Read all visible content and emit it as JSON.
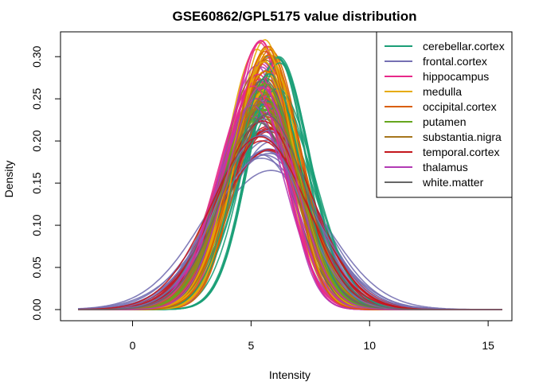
{
  "chart_data": {
    "type": "line",
    "title": "GSE60862/GPL5175 value distribution",
    "xlabel": "Intensity",
    "ylabel": "Density",
    "xlim": [
      -2.3,
      15.6
    ],
    "ylim": [
      0.0,
      0.32
    ],
    "x_ticks": [
      0,
      5,
      10,
      15
    ],
    "y_ticks": [
      0.0,
      0.05,
      0.1,
      0.15,
      0.2,
      0.25,
      0.3
    ],
    "x_tick_labels": [
      "0",
      "5",
      "10",
      "15"
    ],
    "y_tick_labels": [
      "0.00",
      "0.05",
      "0.10",
      "0.15",
      "0.20",
      "0.25",
      "0.30"
    ],
    "grid": false,
    "legend_position": "top-right",
    "series": [
      {
        "name": "cerebellar.cortex",
        "color": "#1B9E77",
        "peak_x": 6.0,
        "peak_y": 0.3
      },
      {
        "name": "frontal.cortex",
        "color": "#7570B3",
        "peak_x": 5.6,
        "peak_y": 0.21
      },
      {
        "name": "hippocampus",
        "color": "#E7298A",
        "peak_x": 5.3,
        "peak_y": 0.32
      },
      {
        "name": "medulla",
        "color": "#E6AB02",
        "peak_x": 5.5,
        "peak_y": 0.32
      },
      {
        "name": "occipital.cortex",
        "color": "#D95F02",
        "peak_x": 5.6,
        "peak_y": 0.31
      },
      {
        "name": "putamen",
        "color": "#66A61E",
        "peak_x": 5.5,
        "peak_y": 0.28
      },
      {
        "name": "substantia.nigra",
        "color": "#A6761D",
        "peak_x": 5.4,
        "peak_y": 0.3
      },
      {
        "name": "temporal.cortex",
        "color": "#C4161C",
        "peak_x": 5.6,
        "peak_y": 0.24
      },
      {
        "name": "thalamus",
        "color": "#B23AB4",
        "peak_x": 5.3,
        "peak_y": 0.29
      },
      {
        "name": "white.matter",
        "color": "#666666",
        "peak_x": 5.5,
        "peak_y": 0.28
      }
    ]
  }
}
